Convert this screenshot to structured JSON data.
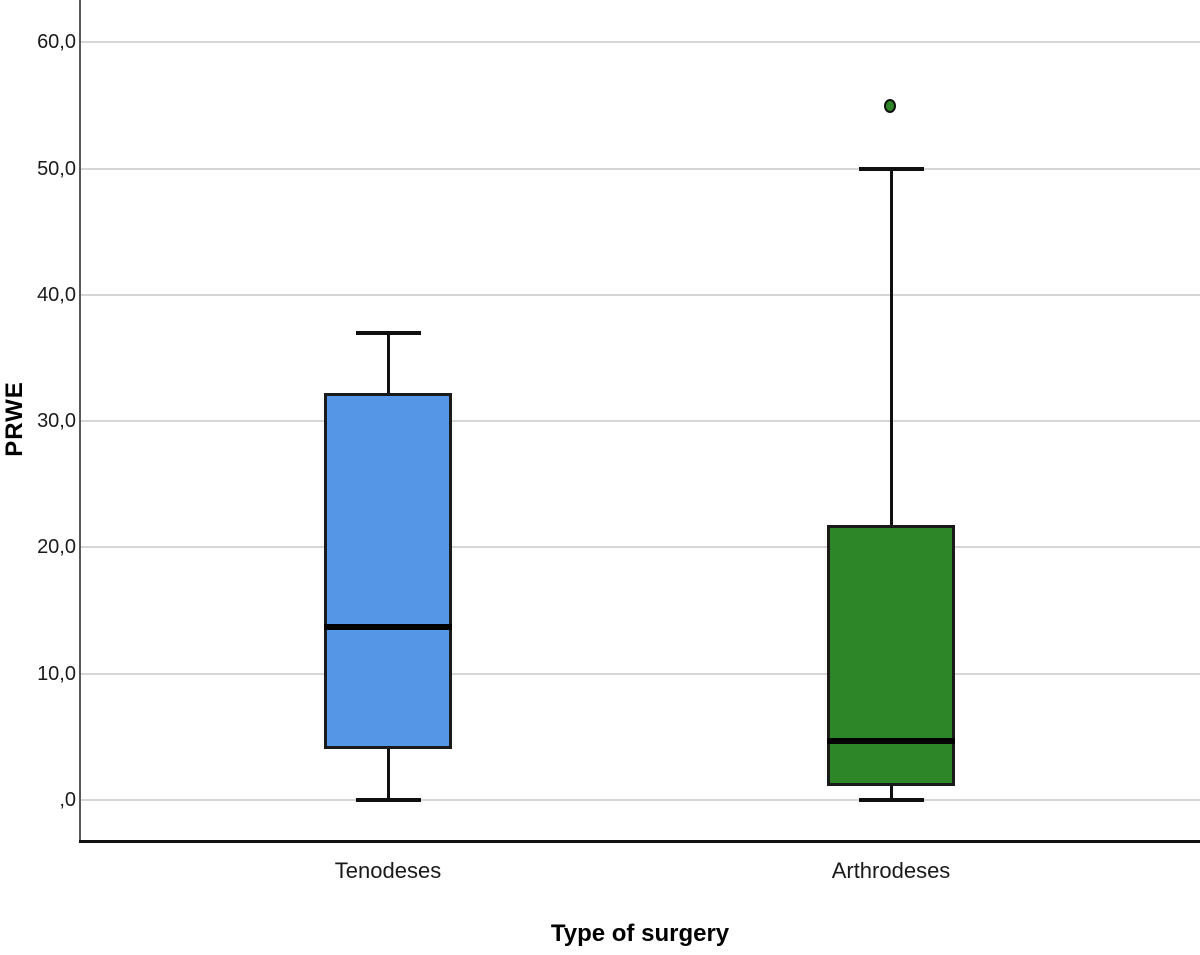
{
  "colors": {
    "background": "#ffffff",
    "gridline": "#d6d6d6",
    "y_axis_line": "#595959",
    "x_axis_line": "#101010",
    "box_border": "#1a1a1a",
    "median": "#000000",
    "tenodeses_blue": "#5596e6",
    "arthrodeses_green": "#2d8728"
  },
  "chart_data": {
    "type": "boxplot",
    "title": "",
    "xlabel": "Type of surgery",
    "ylabel": "PRWE",
    "ylim": [
      -3.3,
      66.5
    ],
    "grid": true,
    "legend": false,
    "categories": [
      "Tenodeses",
      "Arthrodeses"
    ],
    "yticks": [
      {
        "value": 0,
        "label": ",0"
      },
      {
        "value": 10,
        "label": "10,0"
      },
      {
        "value": 20,
        "label": "20,0"
      },
      {
        "value": 30,
        "label": "30,0"
      },
      {
        "value": 40,
        "label": "40,0"
      },
      {
        "value": 50,
        "label": "50,0"
      },
      {
        "value": 60,
        "label": "60,0"
      }
    ],
    "series": [
      {
        "name": "Tenodeses",
        "color": "#5596e6",
        "min": 0.0,
        "q1": 4.0,
        "median": 13.7,
        "q3": 32.2,
        "max": 37.0,
        "outliers": []
      },
      {
        "name": "Arthrodeses",
        "color": "#2d8728",
        "min": 0.0,
        "q1": 1.1,
        "median": 4.7,
        "q3": 21.8,
        "max": 50.0,
        "outliers": [
          55.0
        ]
      }
    ]
  }
}
